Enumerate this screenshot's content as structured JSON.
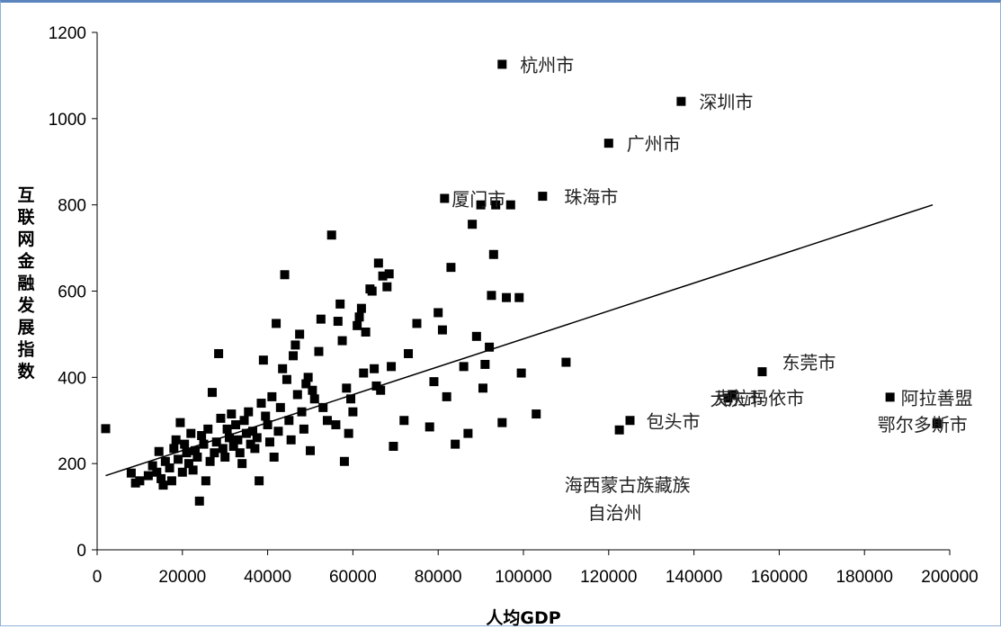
{
  "chart_data": {
    "type": "scatter",
    "title": "",
    "xlabel": "人均GDP",
    "ylabel": "互联网金融发展指数",
    "xlim": [
      0,
      200000
    ],
    "ylim": [
      0,
      1200
    ],
    "xticks": [
      "0",
      "20000",
      "40000",
      "60000",
      "80000",
      "100000",
      "120000",
      "140000",
      "160000",
      "180000",
      "200000"
    ],
    "yticks": [
      "0",
      "200",
      "400",
      "600",
      "800",
      "1000",
      "1200"
    ],
    "grid": false,
    "legend": "none",
    "marker_color": "#000000",
    "trendline": {
      "x": [
        2000,
        196000
      ],
      "y": [
        172,
        800
      ]
    },
    "annotations": [
      {
        "text": "杭州市",
        "x": 95000,
        "y": 1126
      },
      {
        "text": "深圳市",
        "x": 137000,
        "y": 1040
      },
      {
        "text": "广州市",
        "x": 120000,
        "y": 943
      },
      {
        "text": "厦门市",
        "x": 81500,
        "y": 815
      },
      {
        "text": "珠海市",
        "x": 104500,
        "y": 820
      },
      {
        "text": "东莞市",
        "x": 156000,
        "y": 413
      },
      {
        "text": "克拉玛依市",
        "x": 149000,
        "y": 360
      },
      {
        "text": "阿拉善盟",
        "x": 186000,
        "y": 354
      },
      {
        "text": "包头市",
        "x": 125000,
        "y": 300
      },
      {
        "text": "大庆市",
        "x": 148000,
        "y": 352
      },
      {
        "text": "鄂尔多斯市",
        "x": 197000,
        "y": 292
      },
      {
        "text": "海西蒙古族藏族",
        "x": 122500,
        "y": 278
      },
      {
        "text": "自治州",
        "x": 122500,
        "y": 278
      }
    ],
    "points": [
      [
        2000,
        281
      ],
      [
        8000,
        178
      ],
      [
        9000,
        155
      ],
      [
        10000,
        160
      ],
      [
        12000,
        172
      ],
      [
        13000,
        195
      ],
      [
        14000,
        180
      ],
      [
        14500,
        228
      ],
      [
        15000,
        165
      ],
      [
        15500,
        150
      ],
      [
        16000,
        205
      ],
      [
        17000,
        190
      ],
      [
        17500,
        160
      ],
      [
        18000,
        235
      ],
      [
        18500,
        255
      ],
      [
        19000,
        210
      ],
      [
        19500,
        295
      ],
      [
        20000,
        180
      ],
      [
        20500,
        245
      ],
      [
        21000,
        225
      ],
      [
        21500,
        200
      ],
      [
        22000,
        270
      ],
      [
        22500,
        185
      ],
      [
        23000,
        230
      ],
      [
        23500,
        215
      ],
      [
        24000,
        113
      ],
      [
        24500,
        265
      ],
      [
        25000,
        245
      ],
      [
        25500,
        160
      ],
      [
        26000,
        280
      ],
      [
        26500,
        205
      ],
      [
        27000,
        365
      ],
      [
        27500,
        225
      ],
      [
        28000,
        250
      ],
      [
        28500,
        455
      ],
      [
        29000,
        305
      ],
      [
        29500,
        235
      ],
      [
        30000,
        215
      ],
      [
        30500,
        280
      ],
      [
        31000,
        260
      ],
      [
        31500,
        315
      ],
      [
        32000,
        240
      ],
      [
        32500,
        290
      ],
      [
        33000,
        255
      ],
      [
        33500,
        225
      ],
      [
        34000,
        200
      ],
      [
        34500,
        300
      ],
      [
        35000,
        270
      ],
      [
        35500,
        320
      ],
      [
        36000,
        245
      ],
      [
        36500,
        275
      ],
      [
        37000,
        235
      ],
      [
        37500,
        260
      ],
      [
        38000,
        160
      ],
      [
        38500,
        340
      ],
      [
        39000,
        440
      ],
      [
        39500,
        310
      ],
      [
        40000,
        290
      ],
      [
        40500,
        250
      ],
      [
        41000,
        355
      ],
      [
        41500,
        215
      ],
      [
        42000,
        525
      ],
      [
        42500,
        275
      ],
      [
        43000,
        330
      ],
      [
        43500,
        420
      ],
      [
        44000,
        638
      ],
      [
        44500,
        395
      ],
      [
        45000,
        300
      ],
      [
        45500,
        255
      ],
      [
        46000,
        450
      ],
      [
        46500,
        475
      ],
      [
        47000,
        360
      ],
      [
        47500,
        500
      ],
      [
        48000,
        320
      ],
      [
        48500,
        280
      ],
      [
        49000,
        385
      ],
      [
        49500,
        400
      ],
      [
        50000,
        230
      ],
      [
        50500,
        370
      ],
      [
        51000,
        350
      ],
      [
        52000,
        460
      ],
      [
        52500,
        535
      ],
      [
        53000,
        330
      ],
      [
        54000,
        300
      ],
      [
        55000,
        730
      ],
      [
        56000,
        290
      ],
      [
        56500,
        530
      ],
      [
        57000,
        570
      ],
      [
        57500,
        485
      ],
      [
        58000,
        205
      ],
      [
        58500,
        375
      ],
      [
        59000,
        270
      ],
      [
        59500,
        350
      ],
      [
        60000,
        320
      ],
      [
        61000,
        520
      ],
      [
        61500,
        540
      ],
      [
        62000,
        560
      ],
      [
        62500,
        410
      ],
      [
        63000,
        505
      ],
      [
        64000,
        605
      ],
      [
        64500,
        600
      ],
      [
        65000,
        420
      ],
      [
        65500,
        380
      ],
      [
        66000,
        665
      ],
      [
        66500,
        370
      ],
      [
        67000,
        635
      ],
      [
        68000,
        610
      ],
      [
        68500,
        640
      ],
      [
        69000,
        425
      ],
      [
        69500,
        240
      ],
      [
        72000,
        300
      ],
      [
        73000,
        455
      ],
      [
        75000,
        525
      ],
      [
        78000,
        285
      ],
      [
        79000,
        390
      ],
      [
        80000,
        550
      ],
      [
        81000,
        510
      ],
      [
        82000,
        355
      ],
      [
        83000,
        655
      ],
      [
        84000,
        245
      ],
      [
        86000,
        425
      ],
      [
        87000,
        270
      ],
      [
        88000,
        755
      ],
      [
        89000,
        495
      ],
      [
        90000,
        800
      ],
      [
        90500,
        375
      ],
      [
        91000,
        430
      ],
      [
        92000,
        470
      ],
      [
        92500,
        590
      ],
      [
        93000,
        685
      ],
      [
        93500,
        800
      ],
      [
        95000,
        295
      ],
      [
        96000,
        585
      ],
      [
        97000,
        800
      ],
      [
        99000,
        585
      ],
      [
        99500,
        410
      ],
      [
        103000,
        315
      ],
      [
        110000,
        435
      ]
    ]
  }
}
